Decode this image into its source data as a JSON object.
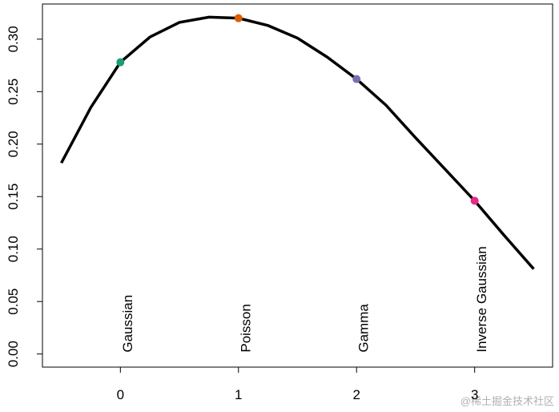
{
  "chart_data": {
    "type": "line",
    "curve": {
      "color": "#000000",
      "x": [
        -0.5,
        -0.25,
        0,
        0.25,
        0.5,
        0.75,
        1,
        1.25,
        1.5,
        1.75,
        2,
        2.25,
        2.5,
        2.75,
        3,
        3.25,
        3.5
      ],
      "values": [
        0.182,
        0.235,
        0.278,
        0.302,
        0.316,
        0.321,
        0.32,
        0.313,
        0.301,
        0.283,
        0.262,
        0.237,
        0.206,
        0.176,
        0.146,
        0.113,
        0.081
      ]
    },
    "points": {
      "x": [
        0,
        1,
        2,
        3
      ],
      "values": [
        0.278,
        0.32,
        0.262,
        0.146
      ],
      "colors": [
        "#1b9e77",
        "#d95f02",
        "#7570b3",
        "#e7298a"
      ],
      "labels": [
        "Gaussian",
        "Poisson",
        "Gamma",
        "Inverse Gaussian"
      ],
      "label_y": 0
    },
    "xlim": [
      -0.66,
      3.66
    ],
    "ylim": [
      -0.0125,
      0.3335
    ],
    "xticks": [
      0,
      1,
      2,
      3
    ],
    "yticks": [
      {
        "value": 0,
        "label": "0.00"
      },
      {
        "value": 0.05,
        "label": "0.05"
      },
      {
        "value": 0.1,
        "label": "0.10"
      },
      {
        "value": 0.15,
        "label": "0.15"
      },
      {
        "value": 0.2,
        "label": "0.20"
      },
      {
        "value": 0.25,
        "label": "0.25"
      },
      {
        "value": 0.3,
        "label": "0.30"
      }
    ],
    "watermark": "@稀土掘金技术社区"
  }
}
